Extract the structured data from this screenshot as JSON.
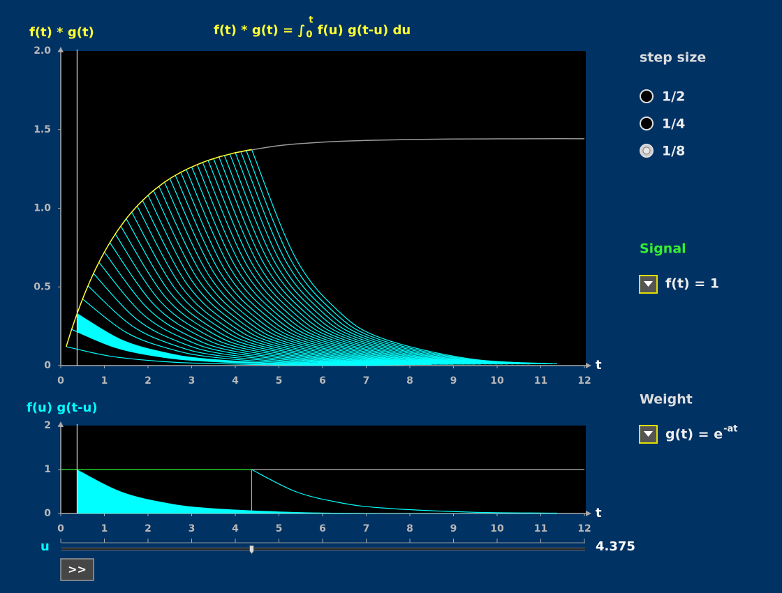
{
  "chart_data": [
    {
      "type": "line",
      "ylabel": "f(t) * g(t)",
      "title": "f(t) * g(t) = ∫",
      "title_lower": "0",
      "title_upper": "t",
      "title_rest": "f(u) g(t-u) du",
      "xlabel": "t",
      "xlim": [
        0,
        12
      ],
      "ylim": [
        0,
        2
      ],
      "xticks": [
        0,
        1,
        2,
        3,
        4,
        5,
        6,
        7,
        8,
        9,
        10,
        11,
        12
      ],
      "yticks": [
        0,
        0.5,
        {
          "value": 1,
          "label": "1.0"
        },
        1.5,
        {
          "value": 2,
          "label": "2.0"
        }
      ],
      "cursor": 0.375,
      "partial_color": "#ffff33",
      "response": {
        "color": "#9a9a9a",
        "x": [
          4,
          5,
          6,
          7,
          8,
          9,
          10,
          11,
          12
        ],
        "values": [
          1.353,
          1.398,
          1.42,
          1.431,
          1.437,
          1.44,
          1.441,
          1.442,
          1.442
        ]
      },
      "components": {
        "color": "#00ffff",
        "curves": [
          {
            "x": [
              0.125,
              1.125,
              2.125,
              3.125,
              5.125,
              7.125
            ],
            "values": [
              0.12,
              0.06,
              0.03,
              0.015,
              0.004,
              0.001
            ]
          },
          {
            "x": [
              0.25,
              1.25,
              2.25,
              3.25,
              5.25,
              7.25
            ],
            "values": [
              0.23,
              0.115,
              0.057,
              0.029,
              0.007,
              0.002
            ]
          },
          {
            "x": [
              0.375,
              1.375,
              2.375,
              3.375,
              5.375,
              7.375
            ],
            "values": [
              0.33,
              0.165,
              0.083,
              0.041,
              0.01,
              0.003
            ]
          },
          {
            "x": [
              0.5,
              1.5,
              2.5,
              3.5,
              5.5,
              7.5
            ],
            "values": [
              0.423,
              0.211,
              0.106,
              0.053,
              0.013,
              0.003
            ]
          },
          {
            "x": [
              0.625,
              1.625,
              2.625,
              3.625,
              5.625,
              7.625
            ],
            "values": [
              0.507,
              0.254,
              0.127,
              0.063,
              0.016,
              0.004
            ]
          },
          {
            "x": [
              0.75,
              1.75,
              2.75,
              3.75,
              5.75,
              7.75
            ],
            "values": [
              0.585,
              0.292,
              0.146,
              0.073,
              0.018,
              0.005
            ]
          },
          {
            "x": [
              0.875,
              1.875,
              2.875,
              3.875,
              5.875,
              7.875
            ],
            "values": [
              0.656,
              0.328,
              0.164,
              0.082,
              0.021,
              0.005
            ]
          },
          {
            "x": [
              1,
              2,
              3,
              4,
              6,
              8
            ],
            "values": [
              0.721,
              0.361,
              0.18,
              0.09,
              0.023,
              0.006
            ]
          },
          {
            "x": [
              1.125,
              2.125,
              3.125,
              4.125,
              6.125,
              8.125
            ],
            "values": [
              0.781,
              0.391,
              0.195,
              0.098,
              0.024,
              0.006
            ]
          },
          {
            "x": [
              1.25,
              2.25,
              3.25,
              4.25,
              6.25,
              8.25
            ],
            "values": [
              0.836,
              0.418,
              0.209,
              0.105,
              0.026,
              0.007
            ]
          },
          {
            "x": [
              1.375,
              2.375,
              3.375,
              4.375,
              6.375,
              8.375
            ],
            "values": [
              0.886,
              0.443,
              0.222,
              0.111,
              0.028,
              0.007
            ]
          },
          {
            "x": [
              1.5,
              2.5,
              3.5,
              4.5,
              6.5,
              8.5
            ],
            "values": [
              0.933,
              0.466,
              0.233,
              0.117,
              0.029,
              0.007
            ]
          },
          {
            "x": [
              1.625,
              2.625,
              3.625,
              4.625,
              6.625,
              8.625
            ],
            "values": [
              0.975,
              0.487,
              0.244,
              0.122,
              0.03,
              0.008
            ]
          },
          {
            "x": [
              1.75,
              2.75,
              3.75,
              4.75,
              6.75,
              8.75
            ],
            "values": [
              1.014,
              0.507,
              0.253,
              0.127,
              0.032,
              0.008
            ]
          },
          {
            "x": [
              1.875,
              2.875,
              3.875,
              4.875,
              6.875,
              8.875
            ],
            "values": [
              1.049,
              0.525,
              0.262,
              0.131,
              0.033,
              0.008
            ]
          },
          {
            "x": [
              2,
              3,
              4,
              5,
              7,
              9
            ],
            "values": [
              1.082,
              0.541,
              0.271,
              0.135,
              0.034,
              0.008
            ]
          },
          {
            "x": [
              2.125,
              3.125,
              4.125,
              5.125,
              7.125,
              9.125
            ],
            "values": [
              1.112,
              0.556,
              0.278,
              0.139,
              0.035,
              0.009
            ]
          },
          {
            "x": [
              2.25,
              3.25,
              4.25,
              5.25,
              7.25,
              9.25
            ],
            "values": [
              1.139,
              0.57,
              0.285,
              0.142,
              0.036,
              0.009
            ]
          },
          {
            "x": [
              2.375,
              3.375,
              4.375,
              5.375,
              7.375,
              9.375
            ],
            "values": [
              1.165,
              0.582,
              0.291,
              0.146,
              0.036,
              0.009
            ]
          },
          {
            "x": [
              2.5,
              3.5,
              4.5,
              5.5,
              7.5,
              9.5
            ],
            "values": [
              1.188,
              0.594,
              0.297,
              0.148,
              0.037,
              0.009
            ]
          },
          {
            "x": [
              2.625,
              3.625,
              4.625,
              5.625,
              7.625,
              9.625
            ],
            "values": [
              1.209,
              0.604,
              0.302,
              0.151,
              0.038,
              0.009
            ]
          },
          {
            "x": [
              2.75,
              3.75,
              4.75,
              5.75,
              7.75,
              9.75
            ],
            "values": [
              1.228,
              0.614,
              0.307,
              0.154,
              0.038,
              0.01
            ]
          },
          {
            "x": [
              2.875,
              3.875,
              4.875,
              5.875,
              7.875,
              9.875
            ],
            "values": [
              1.246,
              0.623,
              0.312,
              0.156,
              0.039,
              0.01
            ]
          },
          {
            "x": [
              3,
              4,
              5,
              6,
              8,
              10
            ],
            "values": [
              1.262,
              0.631,
              0.316,
              0.158,
              0.039,
              0.01
            ]
          },
          {
            "x": [
              3.125,
              4.125,
              5.125,
              6.125,
              8.125,
              10.125
            ],
            "values": [
              1.277,
              0.639,
              0.319,
              0.16,
              0.04,
              0.01
            ]
          },
          {
            "x": [
              3.25,
              4.25,
              5.25,
              6.25,
              8.25,
              10.25
            ],
            "values": [
              1.291,
              0.646,
              0.323,
              0.161,
              0.04,
              0.01
            ]
          },
          {
            "x": [
              3.375,
              4.375,
              5.375,
              6.375,
              8.375,
              10.375
            ],
            "values": [
              1.304,
              0.652,
              0.326,
              0.163,
              0.041,
              0.01
            ]
          },
          {
            "x": [
              3.5,
              4.5,
              5.5,
              6.5,
              8.5,
              10.5
            ],
            "values": [
              1.315,
              0.658,
              0.329,
              0.164,
              0.041,
              0.01
            ]
          },
          {
            "x": [
              3.625,
              4.625,
              5.625,
              6.625,
              8.625,
              10.625
            ],
            "values": [
              1.326,
              0.663,
              0.331,
              0.166,
              0.041,
              0.01
            ]
          },
          {
            "x": [
              3.75,
              4.75,
              5.75,
              6.75,
              8.75,
              10.75
            ],
            "values": [
              1.335,
              0.668,
              0.334,
              0.167,
              0.042,
              0.01
            ]
          },
          {
            "x": [
              3.875,
              4.875,
              5.875,
              6.875,
              8.875,
              10.875
            ],
            "values": [
              1.344,
              0.672,
              0.336,
              0.168,
              0.042,
              0.011
            ]
          },
          {
            "x": [
              4,
              5,
              6,
              7,
              9,
              11
            ],
            "values": [
              1.353,
              0.676,
              0.338,
              0.169,
              0.042,
              0.011
            ]
          },
          {
            "x": [
              4.125,
              5.125,
              6.125,
              7.125,
              9.125,
              11.125
            ],
            "values": [
              1.36,
              0.68,
              0.34,
              0.17,
              0.043,
              0.011
            ]
          },
          {
            "x": [
              4.25,
              5.25,
              6.25,
              7.25,
              9.25,
              11.25
            ],
            "values": [
              1.367,
              0.683,
              0.342,
              0.171,
              0.043,
              0.011
            ]
          },
          {
            "x": [
              4.375,
              5.375,
              6.375,
              7.375,
              9.375,
              11.375
            ],
            "values": [
              1.373,
              0.687,
              0.343,
              0.172,
              0.043,
              0.011
            ]
          }
        ]
      }
    },
    {
      "type": "line",
      "ylabel": "f(u) g(t-u)",
      "xlabel": "t",
      "xlim": [
        0,
        12
      ],
      "ylim": [
        0,
        2
      ],
      "xticks": [
        0,
        1,
        2,
        3,
        4,
        5,
        6,
        7,
        8,
        9,
        10,
        11,
        12
      ],
      "yticks": [
        0,
        1,
        2
      ],
      "cursor": 0.375,
      "signal": {
        "colors": [
          "#22cc22",
          "#9a9a9a"
        ],
        "x": [
          0,
          4.375,
          12
        ],
        "values": [
          1,
          1,
          1
        ]
      },
      "weight": {
        "color": "#00ffff",
        "x": [
          4.375,
          5.375,
          6.375,
          7.375,
          9.375,
          11.375
        ],
        "values": [
          1,
          0.5,
          0.25,
          0.125,
          0.031,
          0.008
        ]
      },
      "product": {
        "color": "#00ffff",
        "x": [
          0.375,
          1.375,
          2.375,
          3.375,
          5.375,
          7.375
        ],
        "values": [
          1,
          0.5,
          0.25,
          0.125,
          0.031,
          0.008
        ]
      }
    }
  ],
  "slider": {
    "label": "u",
    "value": 4.375
  },
  "button": {
    "label": ">>"
  },
  "step_size": {
    "title": "step size",
    "options": [
      "1/2",
      "1/4",
      "1/8"
    ],
    "selected": 2
  },
  "signal_menu": {
    "title": "Signal",
    "label": "f(t) = 1"
  },
  "weight_menu": {
    "title": "Weight",
    "label": "g(t) = e",
    "label_upper": "-at"
  }
}
